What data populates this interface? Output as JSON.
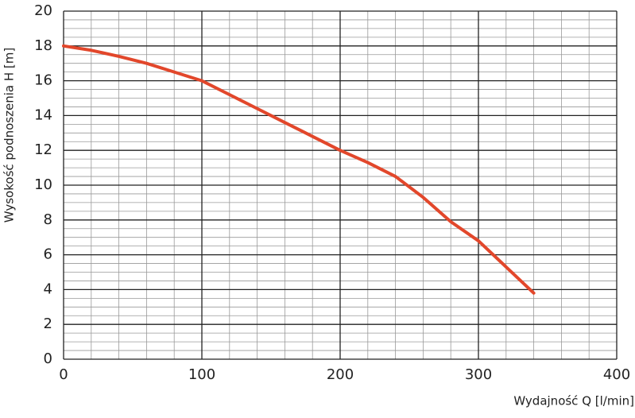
{
  "chart_data": {
    "type": "line",
    "x_label": "Wydajność Q [l/min]",
    "y_label": "Wysokość podnoszenia H [m]",
    "xlim": [
      0,
      400
    ],
    "xticks": [
      0,
      100,
      200,
      300,
      400
    ],
    "ylim": [
      0,
      20
    ],
    "yticks": [
      0,
      2,
      4,
      6,
      8,
      10,
      12,
      14,
      16,
      18,
      20
    ],
    "grid": true,
    "x": [
      0,
      20,
      40,
      60,
      80,
      100,
      120,
      140,
      160,
      180,
      200,
      220,
      240,
      260,
      280,
      300,
      320,
      340
    ],
    "series": [
      {
        "name": null,
        "color": "#e2472b",
        "values": [
          18,
          17.75,
          17.4,
          17,
          16.5,
          16,
          15.2,
          14.4,
          13.6,
          12.8,
          12,
          11.3,
          10.5,
          9.3,
          7.9,
          6.8,
          5.3,
          3.8
        ]
      }
    ]
  }
}
